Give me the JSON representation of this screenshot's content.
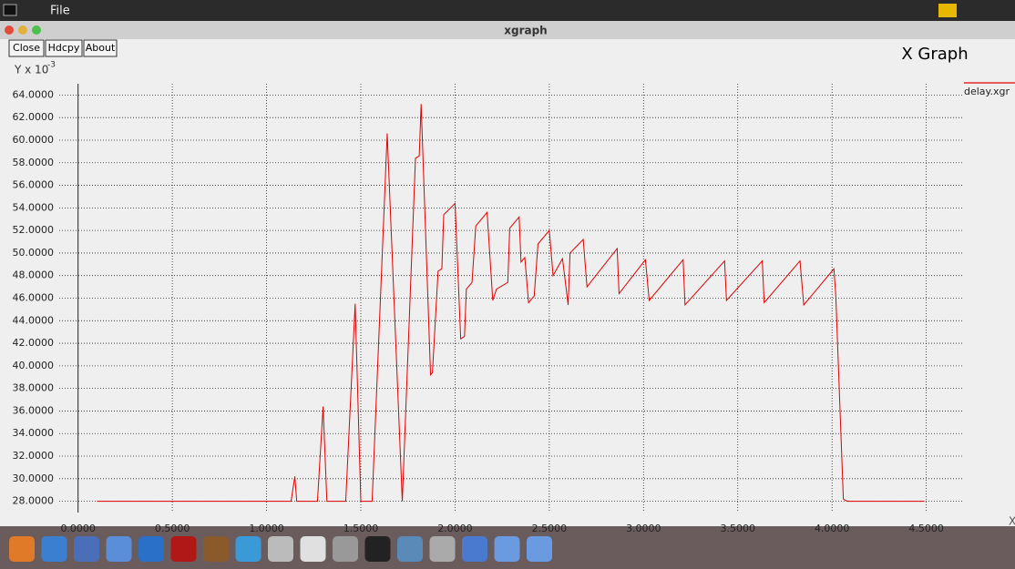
{
  "menu_bar": {
    "menu": "File"
  },
  "window": {
    "title": "xgraph",
    "buttons": [
      "Close",
      "Hdcpy",
      "About"
    ]
  },
  "chart_data": {
    "type": "line",
    "title": "X Graph",
    "y_label": "Y x 10",
    "y_label_exponent": "-3",
    "x_label": "X",
    "grid": true,
    "legend_position": "top-right",
    "xlim": [
      -0.1,
      4.7
    ],
    "ylim": [
      27,
      65
    ],
    "xticks": [
      {
        "value": 0,
        "label": "0.0000"
      },
      {
        "value": 0.5,
        "label": "0.5000"
      },
      {
        "value": 1,
        "label": "1.0000"
      },
      {
        "value": 1.5,
        "label": "1.5000"
      },
      {
        "value": 2,
        "label": "2.0000"
      },
      {
        "value": 2.5,
        "label": "2.5000"
      },
      {
        "value": 3,
        "label": "3.0000"
      },
      {
        "value": 3.5,
        "label": "3.5000"
      },
      {
        "value": 4,
        "label": "4.0000"
      },
      {
        "value": 4.5,
        "label": "4.5000"
      }
    ],
    "yticks": [
      {
        "value": 28,
        "label": "28.0000"
      },
      {
        "value": 30,
        "label": "30.0000"
      },
      {
        "value": 32,
        "label": "32.0000"
      },
      {
        "value": 34,
        "label": "34.0000"
      },
      {
        "value": 36,
        "label": "36.0000"
      },
      {
        "value": 38,
        "label": "38.0000"
      },
      {
        "value": 40,
        "label": "40.0000"
      },
      {
        "value": 42,
        "label": "42.0000"
      },
      {
        "value": 44,
        "label": "44.0000"
      },
      {
        "value": 46,
        "label": "46.0000"
      },
      {
        "value": 48,
        "label": "48.0000"
      },
      {
        "value": 50,
        "label": "50.0000"
      },
      {
        "value": 52,
        "label": "52.0000"
      },
      {
        "value": 54,
        "label": "54.0000"
      },
      {
        "value": 56,
        "label": "56.0000"
      },
      {
        "value": 58,
        "label": "58.0000"
      },
      {
        "value": 60,
        "label": "60.0000"
      },
      {
        "value": 62,
        "label": "62.0000"
      },
      {
        "value": 64,
        "label": "64.0000"
      }
    ],
    "series": [
      {
        "name": "delay.xgr",
        "color": "#e00000",
        "x": [
          0.1,
          1.13,
          1.15,
          1.16,
          1.27,
          1.3,
          1.32,
          1.42,
          1.47,
          1.5,
          1.56,
          1.64,
          1.72,
          1.79,
          1.81,
          1.82,
          1.87,
          1.88,
          1.91,
          1.93,
          1.94,
          2.0,
          2.03,
          2.05,
          2.06,
          2.09,
          2.11,
          2.17,
          2.2,
          2.22,
          2.28,
          2.29,
          2.34,
          2.35,
          2.37,
          2.39,
          2.42,
          2.44,
          2.5,
          2.52,
          2.57,
          2.6,
          2.61,
          2.68,
          2.7,
          2.86,
          2.87,
          3.01,
          3.03,
          3.21,
          3.22,
          3.43,
          3.44,
          3.63,
          3.64,
          3.83,
          3.85,
          4.01,
          4.02,
          4.06,
          4.08,
          4.49
        ],
        "values": [
          28,
          28,
          30.2,
          28,
          28,
          36.4,
          28,
          28,
          45.5,
          28,
          28,
          60.6,
          28,
          58.4,
          58.6,
          63.2,
          39.2,
          39.4,
          48.4,
          48.6,
          53.4,
          54.4,
          42.4,
          42.6,
          46.8,
          47.4,
          52.4,
          53.6,
          45.8,
          46.8,
          47.4,
          52.2,
          53.2,
          49.2,
          49.6,
          45.6,
          46.2,
          50.8,
          52.0,
          48.0,
          49.5,
          45.4,
          50.0,
          51.2,
          47.0,
          50.4,
          46.4,
          49.4,
          45.8,
          49.4,
          45.4,
          49.3,
          45.8,
          49.3,
          45.6,
          49.3,
          45.4,
          48.6,
          46.2,
          28.2,
          28,
          28
        ]
      }
    ]
  }
}
